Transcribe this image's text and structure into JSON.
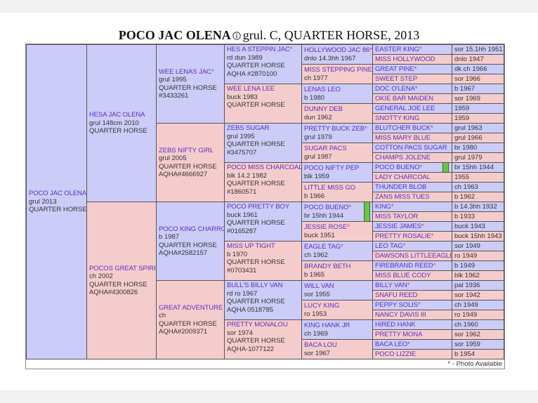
{
  "title": {
    "name": "POCO JAC OLENA",
    "rest": "grul. C, QUARTER HORSE, 2013"
  },
  "footer": "* - Photo Available",
  "generations": [
    [
      {
        "name": "POCO JAC OLENA",
        "details": [
          "grul 2013",
          "QUARTER HORSE"
        ]
      }
    ],
    [
      {
        "name": "HESA JAC OLENA",
        "details": [
          "grul 148cm 2010",
          "QUARTER HORSE"
        ]
      },
      {
        "name": "POCOS GREAT SPIRIT",
        "details": [
          "ch 2002",
          "QUARTER HORSE",
          "AQHA#4300826"
        ]
      }
    ],
    [
      {
        "name": "WEE LENAS JAC",
        "photo": "*",
        "details": [
          "grul 1995",
          "QUARTER HORSE",
          "#3433261"
        ]
      },
      {
        "name": "ZEBS NIFTY GIRL",
        "details": [
          "grul 2005",
          "QUARTER HORSE",
          "AQHA#4666927"
        ]
      },
      {
        "name": "POCO KING CHARRO",
        "details": [
          "b 1987",
          "QUARTER HORSE",
          "AQHA#2582157"
        ]
      },
      {
        "name": "GREAT ADVENTURE",
        "details": [
          "ch",
          "QUARTER HORSE",
          "AQHA#2009371"
        ]
      }
    ],
    [
      {
        "name": "HES A STEPPIN JAC",
        "photo": "*",
        "details": [
          "rd dun 1989",
          "QUARTER HORSE",
          "AQHA #2870100"
        ]
      },
      {
        "name": "WEE LENA LEE",
        "details": [
          "buck 1983",
          "QUARTER HORSE"
        ]
      },
      {
        "name": "ZEBS SUGAR",
        "details": [
          "grul 1995",
          "QUARTER HORSE",
          "#3475707"
        ]
      },
      {
        "name": "POCO MISS CHARCOAL",
        "details": [
          "blk 14.2 1982",
          "QUARTER HORSE",
          "#1860571"
        ]
      },
      {
        "name": "POCO PRETTY BOY",
        "details": [
          "buck 1961",
          "QUARTER HORSE",
          "#0165287"
        ]
      },
      {
        "name": "MISS UP TIGHT",
        "details": [
          "b 1970",
          "QUARTER HORSE",
          "#0703431"
        ]
      },
      {
        "name": "BULL'S BILLY VAN",
        "details": [
          "rd ro 1967",
          "QUARTER HORSE",
          "AQHA 0518785"
        ]
      },
      {
        "name": "PRETTY MONALOU",
        "details": [
          "sor 1974",
          "QUARTER HORSE",
          "AQHA-1077122"
        ]
      }
    ],
    [
      {
        "name": "HOLLYWOOD JAC 86",
        "photo": "*",
        "details": [
          "dnlo 14.3hh 1967"
        ]
      },
      {
        "name": "MISS STEPPING PINE",
        "details": [
          "ch 1977"
        ]
      },
      {
        "name": "LENAS LEO",
        "details": [
          "b 1980"
        ]
      },
      {
        "name": "DUNNY DEB",
        "details": [
          "dun 1962"
        ]
      },
      {
        "name": "PRETTY BUCK ZEB",
        "photo": "*",
        "details": [
          "grul 1979"
        ]
      },
      {
        "name": "SUGAR PACS",
        "details": [
          "grul 1987"
        ]
      },
      {
        "name": "POCO NIFTY PEP",
        "details": [
          "blk 1959"
        ]
      },
      {
        "name": "LITTLE MISS GO",
        "details": [
          "b 1966"
        ]
      },
      {
        "name": "POCO BUENO",
        "photo": "*",
        "details": [
          "br 15hh 1944"
        ],
        "highlight": true
      },
      {
        "name": "JESSIE ROSE",
        "photo": "*",
        "details": [
          "buck 1951"
        ]
      },
      {
        "name": "EAGLE TAG",
        "photo": "*",
        "details": [
          "ch 1962"
        ]
      },
      {
        "name": "BRANDY BETH",
        "details": [
          "b 1965"
        ]
      },
      {
        "name": "WILL VAN",
        "details": [
          "sor 1955"
        ]
      },
      {
        "name": "LUCY KING",
        "details": [
          "ro 1953"
        ]
      },
      {
        "name": "KING HANK JR",
        "details": [
          "ch 1969"
        ]
      },
      {
        "name": "BACA LOU",
        "details": [
          "sor 1967"
        ]
      }
    ],
    [
      {
        "name": "EASTER KING",
        "photo": "*",
        "info": "sor 15.1hh 1951"
      },
      {
        "name": "MISS HOLLYWOOD",
        "info": "dnlo 1947"
      },
      {
        "name": "GREAT PINE",
        "photo": "*",
        "info": "dk ch 1966"
      },
      {
        "name": "SWEET STEP",
        "info": "sor 1966"
      },
      {
        "name": "DOC O'LENA",
        "photo": "*",
        "info": "b 1967"
      },
      {
        "name": "OKIE BAR MAIDEN",
        "info": "sor 1969"
      },
      {
        "name": "GENERAL JOE LEE",
        "info": "1959"
      },
      {
        "name": "SNOTTY KING",
        "info": "1959"
      },
      {
        "name": "BLUTCHER BUCK",
        "photo": "*",
        "info": "grul 1963"
      },
      {
        "name": "MISS MARY BLUE",
        "info": "grul 1966"
      },
      {
        "name": "COTTON PACS SUGAR",
        "info": "br 1980"
      },
      {
        "name": "CHAMPS JOLENE",
        "info": "grul 1979"
      },
      {
        "name": "POCO BUENO",
        "photo": "*",
        "info": "br 15hh 1944",
        "highlight": true
      },
      {
        "name": "LADY CHARCOAL",
        "info": "1955"
      },
      {
        "name": "THUNDER BLOB",
        "info": "ch 1963"
      },
      {
        "name": "ZANS MISS TUES",
        "info": "b 1962"
      },
      {
        "name": "KING",
        "photo": "*",
        "info": "b 14.3hh 1932"
      },
      {
        "name": "MISS TAYLOR",
        "info": "b 1933"
      },
      {
        "name": "JESSIE JAMES",
        "photo": "*",
        "info": "buck 1943"
      },
      {
        "name": "PRETTY ROSALIE",
        "photo": "*",
        "info": "buck 15hh 1943"
      },
      {
        "name": "LEO TAG",
        "photo": "*",
        "info": "sor 1949"
      },
      {
        "name": "DAWSONS LITTLEEAGLE",
        "info": "ro 1949"
      },
      {
        "name": "FIREBRAND REED",
        "photo": "*",
        "info": "b 1949"
      },
      {
        "name": "MISS BLUE CODY",
        "info": "blk 1962"
      },
      {
        "name": "BILLY VAN",
        "photo": "*",
        "info": "pal 1936"
      },
      {
        "name": "SNAFU REED",
        "info": "sor 1942"
      },
      {
        "name": "PEPPY SOLIS",
        "photo": "*",
        "info": "ch 1949"
      },
      {
        "name": "NANCY DAVIS III",
        "info": "ro 1949"
      },
      {
        "name": "HIRED HANK",
        "info": "ch 1960"
      },
      {
        "name": "PRETTY MONA",
        "info": "sor 1962"
      },
      {
        "name": "BACA LEO",
        "photo": "*",
        "info": "sor 1959"
      },
      {
        "name": "POCO LIZZIE",
        "info": "b 1954"
      }
    ]
  ]
}
